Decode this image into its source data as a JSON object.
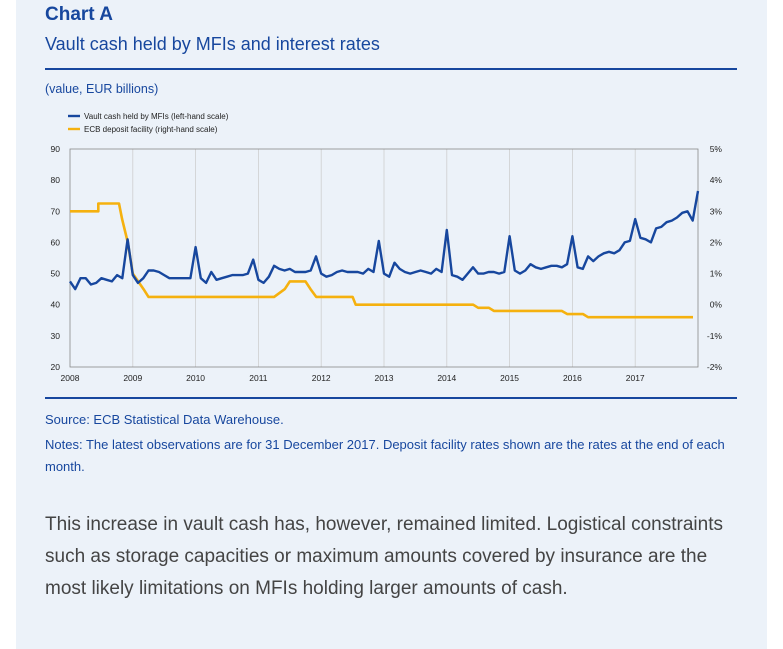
{
  "title": "Chart A",
  "subtitle": "Vault cash held by MFIs and interest rates",
  "unit_label": "(value, EUR billions)",
  "source": "Source: ECB Statistical Data Warehouse.",
  "notes": "Notes: The latest observations are for 31 December 2017. Deposit facility rates shown are the rates at the end of each month.",
  "body_text": "This increase in vault cash has, however, remained limited. Logistical constraints such as storage capacities or maximum amounts covered by insurance are the most likely limitations on MFIs holding larger amounts of cash.",
  "colors": {
    "vault": "#17479e",
    "deposit": "#f5b10f",
    "grid": "#cfcfcf",
    "accent": "#17479e"
  },
  "chart_data": {
    "type": "line",
    "title": "Vault cash held by MFIs and interest rates",
    "x_ticks": [
      "2008",
      "2009",
      "2010",
      "2011",
      "2012",
      "2013",
      "2014",
      "2015",
      "2016",
      "2017"
    ],
    "xlim": [
      2008.0,
      2018.0
    ],
    "y_left": {
      "label": "",
      "ylim": [
        20,
        90
      ],
      "ticks": [
        "20",
        "30",
        "40",
        "50",
        "60",
        "70",
        "80",
        "90"
      ]
    },
    "y_right": {
      "label": "",
      "ylim": [
        -2,
        5
      ],
      "ticks": [
        "-2%",
        "-1%",
        "0%",
        "1%",
        "2%",
        "3%",
        "4%",
        "5%"
      ]
    },
    "grid": "vertical at years",
    "legend": "top-left",
    "series": [
      {
        "name": "Vault cash held by MFIs (left-hand scale)",
        "axis": "left",
        "x_start": 2008.0,
        "x_step": 0.08333,
        "values": [
          47.5,
          45,
          48.5,
          48.5,
          46.5,
          47,
          48.5,
          48,
          47.5,
          49.5,
          48.5,
          61,
          49.5,
          47,
          48.5,
          51,
          51,
          50.5,
          49.5,
          48.5,
          48.5,
          48.5,
          48.5,
          48.5,
          58.5,
          48.5,
          47,
          50.5,
          48,
          48.5,
          49,
          49.5,
          49.5,
          49.5,
          50,
          54.5,
          48,
          47,
          49,
          52.5,
          51.5,
          51,
          51.5,
          50.5,
          50.5,
          50.5,
          51,
          55.5,
          50,
          49,
          49.5,
          50.5,
          51,
          50.5,
          50.5,
          50.5,
          50,
          51.5,
          50.5,
          60.5,
          50,
          49,
          53.5,
          51.5,
          50.5,
          50,
          50.5,
          51,
          50.5,
          50,
          51.5,
          50.5,
          64,
          49.5,
          49,
          48,
          50,
          52,
          50,
          50,
          50.5,
          50.5,
          50,
          50.5,
          62,
          51,
          50,
          51,
          53,
          52,
          51.5,
          52,
          52.5,
          52.5,
          52,
          53,
          62,
          52,
          51.5,
          55.5,
          54,
          55.5,
          56.5,
          57,
          56.5,
          57.5,
          60,
          60.5,
          67.5,
          61.5,
          61,
          60,
          64.5,
          65,
          66.5,
          67,
          68,
          69.5,
          70,
          67,
          76.5
        ]
      },
      {
        "name": "ECB deposit facility (right-hand scale)",
        "axis": "right",
        "step": true,
        "points": [
          [
            2008.0,
            3.0
          ],
          [
            2008.45,
            3.0
          ],
          [
            2008.45,
            3.25
          ],
          [
            2008.78,
            3.25
          ],
          [
            2008.83,
            2.75
          ],
          [
            2008.92,
            2.0
          ],
          [
            2009.0,
            1.0
          ],
          [
            2009.17,
            0.5
          ],
          [
            2009.25,
            0.25
          ],
          [
            2011.25,
            0.25
          ],
          [
            2011.42,
            0.5
          ],
          [
            2011.5,
            0.75
          ],
          [
            2011.75,
            0.75
          ],
          [
            2011.83,
            0.5
          ],
          [
            2011.92,
            0.25
          ],
          [
            2012.5,
            0.25
          ],
          [
            2012.55,
            0.0
          ],
          [
            2014.42,
            0.0
          ],
          [
            2014.5,
            -0.1
          ],
          [
            2014.67,
            -0.1
          ],
          [
            2014.75,
            -0.2
          ],
          [
            2015.83,
            -0.2
          ],
          [
            2015.92,
            -0.3
          ],
          [
            2016.17,
            -0.3
          ],
          [
            2016.25,
            -0.4
          ],
          [
            2017.92,
            -0.4
          ]
        ]
      }
    ]
  }
}
